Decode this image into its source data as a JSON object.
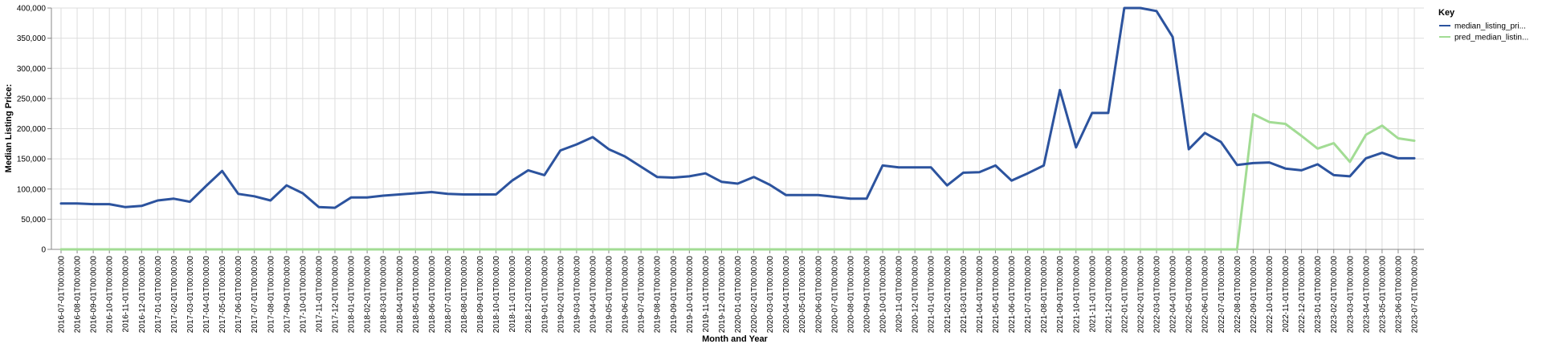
{
  "chart_data": {
    "type": "line",
    "xlabel": "Month and Year",
    "ylabel": "Median Listing Price:",
    "ylim": [
      0,
      400000
    ],
    "yticks": [
      0,
      50000,
      100000,
      150000,
      200000,
      250000,
      300000,
      350000,
      400000
    ],
    "ytick_labels": [
      "0",
      "50,000",
      "100,000",
      "150,000",
      "200,000",
      "250,000",
      "300,000",
      "350,000",
      "400,000"
    ],
    "grid": true,
    "legend": {
      "title": "Key",
      "placement": "top-right"
    },
    "x": [
      "2016-07-01T00:00:00",
      "2016-08-01T00:00:00",
      "2016-09-01T00:00:00",
      "2016-10-01T00:00:00",
      "2016-11-01T00:00:00",
      "2016-12-01T00:00:00",
      "2017-01-01T00:00:00",
      "2017-02-01T00:00:00",
      "2017-03-01T00:00:00",
      "2017-04-01T00:00:00",
      "2017-05-01T00:00:00",
      "2017-06-01T00:00:00",
      "2017-07-01T00:00:00",
      "2017-08-01T00:00:00",
      "2017-09-01T00:00:00",
      "2017-10-01T00:00:00",
      "2017-11-01T00:00:00",
      "2017-12-01T00:00:00",
      "2018-01-01T00:00:00",
      "2018-02-01T00:00:00",
      "2018-03-01T00:00:00",
      "2018-04-01T00:00:00",
      "2018-05-01T00:00:00",
      "2018-06-01T00:00:00",
      "2018-07-01T00:00:00",
      "2018-08-01T00:00:00",
      "2018-09-01T00:00:00",
      "2018-10-01T00:00:00",
      "2018-11-01T00:00:00",
      "2018-12-01T00:00:00",
      "2019-01-01T00:00:00",
      "2019-02-01T00:00:00",
      "2019-03-01T00:00:00",
      "2019-04-01T00:00:00",
      "2019-05-01T00:00:00",
      "2019-06-01T00:00:00",
      "2019-07-01T00:00:00",
      "2019-08-01T00:00:00",
      "2019-09-01T00:00:00",
      "2019-10-01T00:00:00",
      "2019-11-01T00:00:00",
      "2019-12-01T00:00:00",
      "2020-01-01T00:00:00",
      "2020-02-01T00:00:00",
      "2020-03-01T00:00:00",
      "2020-04-01T00:00:00",
      "2020-05-01T00:00:00",
      "2020-06-01T00:00:00",
      "2020-07-01T00:00:00",
      "2020-08-01T00:00:00",
      "2020-09-01T00:00:00",
      "2020-10-01T00:00:00",
      "2020-11-01T00:00:00",
      "2020-12-01T00:00:00",
      "2021-01-01T00:00:00",
      "2021-02-01T00:00:00",
      "2021-03-01T00:00:00",
      "2021-04-01T00:00:00",
      "2021-05-01T00:00:00",
      "2021-06-01T00:00:00",
      "2021-07-01T00:00:00",
      "2021-08-01T00:00:00",
      "2021-09-01T00:00:00",
      "2021-10-01T00:00:00",
      "2021-11-01T00:00:00",
      "2021-12-01T00:00:00",
      "2022-01-01T00:00:00",
      "2022-02-01T00:00:00",
      "2022-03-01T00:00:00",
      "2022-04-01T00:00:00",
      "2022-05-01T00:00:00",
      "2022-06-01T00:00:00",
      "2022-07-01T00:00:00",
      "2022-08-01T00:00:00",
      "2022-09-01T00:00:00",
      "2022-10-01T00:00:00",
      "2022-11-01T00:00:00",
      "2022-12-01T00:00:00",
      "2023-01-01T00:00:00",
      "2023-02-01T00:00:00",
      "2023-03-01T00:00:00",
      "2023-04-01T00:00:00",
      "2023-05-01T00:00:00",
      "2023-06-01T00:00:00",
      "2023-07-01T00:00:00"
    ],
    "series": [
      {
        "name": "median_listing_pri...",
        "color": "#2c539e",
        "values": [
          76000,
          76000,
          75000,
          75000,
          70000,
          72000,
          81000,
          84000,
          79000,
          105000,
          130000,
          92000,
          88000,
          81000,
          106000,
          93000,
          70000,
          69000,
          86000,
          86000,
          89000,
          91000,
          93000,
          95000,
          92000,
          91000,
          91000,
          91000,
          114000,
          131000,
          123000,
          164000,
          174000,
          186000,
          166000,
          154000,
          137000,
          120000,
          119000,
          121000,
          126000,
          112000,
          109000,
          120000,
          107000,
          90000,
          90000,
          90000,
          87000,
          84000,
          84000,
          139000,
          136000,
          136000,
          136000,
          106000,
          127000,
          128000,
          139000,
          114000,
          126000,
          139000,
          264000,
          169000,
          226000,
          226000,
          400000,
          400000,
          395000,
          352000,
          166000,
          193000,
          178000,
          140000,
          143000,
          144000,
          134000,
          131000,
          141000,
          123000,
          121000,
          151000,
          160000,
          151000,
          151000
        ]
      },
      {
        "name": "pred_median_listin...",
        "color": "#a2dc94",
        "values": [
          0,
          0,
          0,
          0,
          0,
          0,
          0,
          0,
          0,
          0,
          0,
          0,
          0,
          0,
          0,
          0,
          0,
          0,
          0,
          0,
          0,
          0,
          0,
          0,
          0,
          0,
          0,
          0,
          0,
          0,
          0,
          0,
          0,
          0,
          0,
          0,
          0,
          0,
          0,
          0,
          0,
          0,
          0,
          0,
          0,
          0,
          0,
          0,
          0,
          0,
          0,
          0,
          0,
          0,
          0,
          0,
          0,
          0,
          0,
          0,
          0,
          0,
          0,
          0,
          0,
          0,
          0,
          0,
          0,
          0,
          0,
          0,
          0,
          0,
          224000,
          211000,
          208000,
          188000,
          167000,
          176000,
          145000,
          190000,
          205000,
          184000,
          180000
        ]
      }
    ]
  }
}
